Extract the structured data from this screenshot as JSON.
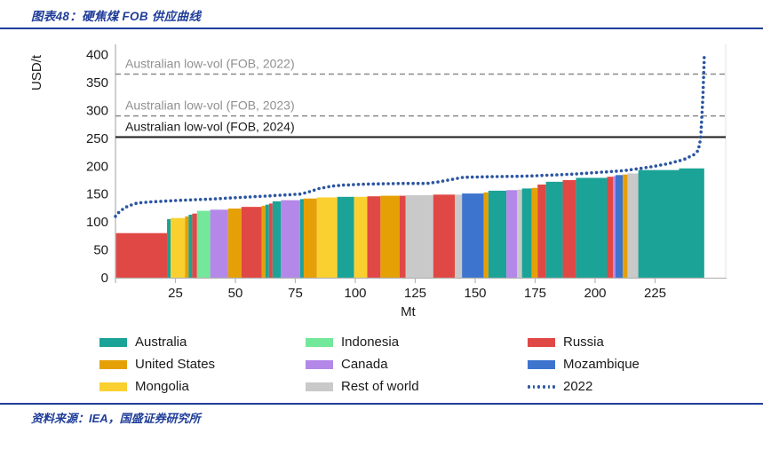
{
  "header": {
    "title": "图表48：硬焦煤 FOB 供应曲线"
  },
  "footer": {
    "source": "资料来源：IEA，国盛证券研究所"
  },
  "colors": {
    "accent_navy": "#1F3D99",
    "axis_gray": "#B5B5B5",
    "plot_border_gray": "#E3E3E3",
    "ref_dashed_gray": "#8A8A8A",
    "ref_solid_black": "#1A1A1A",
    "ref_label_gray": "#909090",
    "line_2022": "#2B55A2"
  },
  "chart_data": {
    "type": "bar",
    "title": "",
    "xlabel": "Mt",
    "ylabel": "USD/t",
    "xlim": [
      0,
      250
    ],
    "ylim": [
      0,
      400
    ],
    "grid": false,
    "x_ticks": [
      25,
      50,
      75,
      100,
      125,
      150,
      175,
      200,
      225
    ],
    "y_ticks": [
      0,
      50,
      100,
      150,
      200,
      250,
      300,
      350,
      400
    ],
    "country_colors": {
      "Australia": "#1AA396",
      "United States": "#E5A006",
      "Mongolia": "#FAD030",
      "Indonesia": "#73E89A",
      "Canada": "#B388E8",
      "Rest of world": "#C9C9C9",
      "Russia": "#E04845",
      "Mozambique": "#3D74CE"
    },
    "segments": [
      {
        "country": "Russia",
        "from": 0,
        "to": 21.5,
        "price": 80
      },
      {
        "country": "Australia",
        "from": 21.5,
        "to": 23,
        "price": 105
      },
      {
        "country": "Mongolia",
        "from": 23,
        "to": 29,
        "price": 107
      },
      {
        "country": "United States",
        "from": 29,
        "to": 30.5,
        "price": 110
      },
      {
        "country": "Australia",
        "from": 30.5,
        "to": 32,
        "price": 113
      },
      {
        "country": "Russia",
        "from": 32,
        "to": 34,
        "price": 115
      },
      {
        "country": "Indonesia",
        "from": 34,
        "to": 39.5,
        "price": 120
      },
      {
        "country": "Canada",
        "from": 39.5,
        "to": 47,
        "price": 122
      },
      {
        "country": "United States",
        "from": 47,
        "to": 52.5,
        "price": 124
      },
      {
        "country": "Russia",
        "from": 52.5,
        "to": 61,
        "price": 127
      },
      {
        "country": "United States",
        "from": 61,
        "to": 62.5,
        "price": 129
      },
      {
        "country": "Australia",
        "from": 62.5,
        "to": 64,
        "price": 131
      },
      {
        "country": "Russia",
        "from": 64,
        "to": 65.5,
        "price": 133
      },
      {
        "country": "Australia",
        "from": 65.5,
        "to": 69,
        "price": 137
      },
      {
        "country": "Canada",
        "from": 69,
        "to": 77,
        "price": 139
      },
      {
        "country": "Australia",
        "from": 77,
        "to": 78.5,
        "price": 141
      },
      {
        "country": "United States",
        "from": 78.5,
        "to": 84,
        "price": 142
      },
      {
        "country": "Mongolia",
        "from": 84,
        "to": 92.5,
        "price": 144
      },
      {
        "country": "Australia",
        "from": 92.5,
        "to": 99.5,
        "price": 145
      },
      {
        "country": "Mongolia",
        "from": 99.5,
        "to": 105,
        "price": 145
      },
      {
        "country": "Russia",
        "from": 105,
        "to": 110.5,
        "price": 146
      },
      {
        "country": "United States",
        "from": 110.5,
        "to": 118.5,
        "price": 147
      },
      {
        "country": "Russia",
        "from": 118.5,
        "to": 121,
        "price": 147
      },
      {
        "country": "Rest of world",
        "from": 121,
        "to": 132.5,
        "price": 148
      },
      {
        "country": "Russia",
        "from": 132.5,
        "to": 141.5,
        "price": 149
      },
      {
        "country": "Rest of world",
        "from": 141.5,
        "to": 144.5,
        "price": 149
      },
      {
        "country": "Mozambique",
        "from": 144.5,
        "to": 153.5,
        "price": 151
      },
      {
        "country": "United States",
        "from": 153.5,
        "to": 155.5,
        "price": 153
      },
      {
        "country": "Australia",
        "from": 155.5,
        "to": 163,
        "price": 156
      },
      {
        "country": "Canada",
        "from": 163,
        "to": 167.5,
        "price": 157
      },
      {
        "country": "Rest of world",
        "from": 167.5,
        "to": 169.5,
        "price": 158
      },
      {
        "country": "Australia",
        "from": 169.5,
        "to": 173.5,
        "price": 160
      },
      {
        "country": "United States",
        "from": 173.5,
        "to": 176,
        "price": 161
      },
      {
        "country": "Russia",
        "from": 176,
        "to": 179.5,
        "price": 167
      },
      {
        "country": "Australia",
        "from": 179.5,
        "to": 186.5,
        "price": 172
      },
      {
        "country": "Russia",
        "from": 186.5,
        "to": 192,
        "price": 175
      },
      {
        "country": "Australia",
        "from": 192,
        "to": 205,
        "price": 179
      },
      {
        "country": "Russia",
        "from": 205,
        "to": 207.5,
        "price": 181
      },
      {
        "country": "Canada",
        "from": 207.5,
        "to": 208.5,
        "price": 182
      },
      {
        "country": "Mozambique",
        "from": 208.5,
        "to": 211.5,
        "price": 184
      },
      {
        "country": "United States",
        "from": 211.5,
        "to": 213.5,
        "price": 185
      },
      {
        "country": "Rest of world",
        "from": 213.5,
        "to": 218,
        "price": 187
      },
      {
        "country": "Australia",
        "from": 218,
        "to": 235,
        "price": 193
      },
      {
        "country": "Australia",
        "from": 235,
        "to": 245.5,
        "price": 196
      }
    ],
    "reference_lines": [
      {
        "label": "Australian low-vol (FOB, 2022)",
        "value": 365,
        "style": "dashed"
      },
      {
        "label": "Australian low-vol (FOB, 2023)",
        "value": 290,
        "style": "dashed"
      },
      {
        "label": "Australian low-vol (FOB, 2024)",
        "value": 252,
        "style": "solid"
      }
    ],
    "series_2022": {
      "name": "2022",
      "points": [
        [
          0,
          110
        ],
        [
          2,
          120
        ],
        [
          5,
          128
        ],
        [
          9,
          134
        ],
        [
          15,
          136
        ],
        [
          28,
          139
        ],
        [
          40,
          141
        ],
        [
          52,
          144
        ],
        [
          65,
          147
        ],
        [
          77,
          150
        ],
        [
          80,
          153
        ],
        [
          85,
          160
        ],
        [
          90,
          164
        ],
        [
          95,
          166
        ],
        [
          105,
          168
        ],
        [
          120,
          169
        ],
        [
          130,
          169
        ],
        [
          135,
          172
        ],
        [
          140,
          176
        ],
        [
          145,
          180
        ],
        [
          155,
          181
        ],
        [
          170,
          182
        ],
        [
          182,
          184
        ],
        [
          192,
          186
        ],
        [
          202,
          189
        ],
        [
          212,
          192
        ],
        [
          219,
          196
        ],
        [
          225,
          200
        ],
        [
          231,
          205
        ],
        [
          237,
          212
        ],
        [
          241,
          220
        ],
        [
          243,
          228
        ],
        [
          244,
          250
        ],
        [
          244.5,
          290
        ],
        [
          245,
          330
        ],
        [
          245.5,
          395
        ]
      ]
    },
    "legend": [
      {
        "label": "Australia",
        "color": "#1AA396",
        "marker": "box"
      },
      {
        "label": "Indonesia",
        "color": "#73E89A",
        "marker": "box"
      },
      {
        "label": "Russia",
        "color": "#E04845",
        "marker": "box"
      },
      {
        "label": "United States",
        "color": "#E5A006",
        "marker": "box"
      },
      {
        "label": "Canada",
        "color": "#B388E8",
        "marker": "box"
      },
      {
        "label": "Mozambique",
        "color": "#3D74CE",
        "marker": "box"
      },
      {
        "label": "Mongolia",
        "color": "#FAD030",
        "marker": "box"
      },
      {
        "label": "Rest of world",
        "color": "#C9C9C9",
        "marker": "box"
      },
      {
        "label": "2022",
        "color": "#2B55A2",
        "marker": "dots"
      }
    ]
  }
}
